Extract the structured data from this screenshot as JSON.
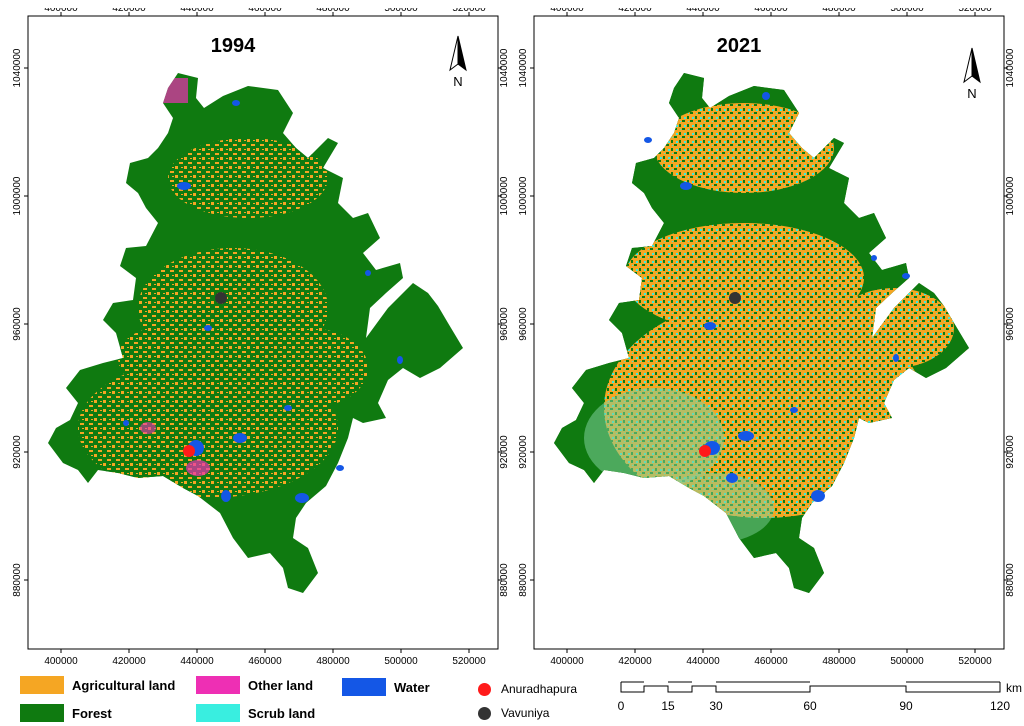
{
  "maps": [
    {
      "title": "1994",
      "north_label": "N"
    },
    {
      "title": "2021",
      "north_label": "N"
    }
  ],
  "x_ticks": [
    "400000",
    "420000",
    "440000",
    "460000",
    "480000",
    "500000",
    "520000"
  ],
  "y_ticks": [
    "1040000",
    "1000000",
    "960000",
    "920000",
    "880000"
  ],
  "legend": {
    "classes": [
      {
        "label": "Agricultural land",
        "color": "#f5a623"
      },
      {
        "label": "Forest",
        "color": "#0f7a10"
      },
      {
        "label": "Other land",
        "color": "#ee2fb4"
      },
      {
        "label": "Scrub land",
        "color": "#39eee0"
      },
      {
        "label": "Water",
        "color": "#1457e6"
      }
    ],
    "points": [
      {
        "label": "Anuradhapura",
        "color": "#ff1a1a"
      },
      {
        "label": "Vavuniya",
        "color": "#333333"
      }
    ]
  },
  "scale_bar": {
    "labels": [
      "0",
      "15",
      "30",
      "60",
      "90",
      "120"
    ],
    "unit": "km"
  }
}
